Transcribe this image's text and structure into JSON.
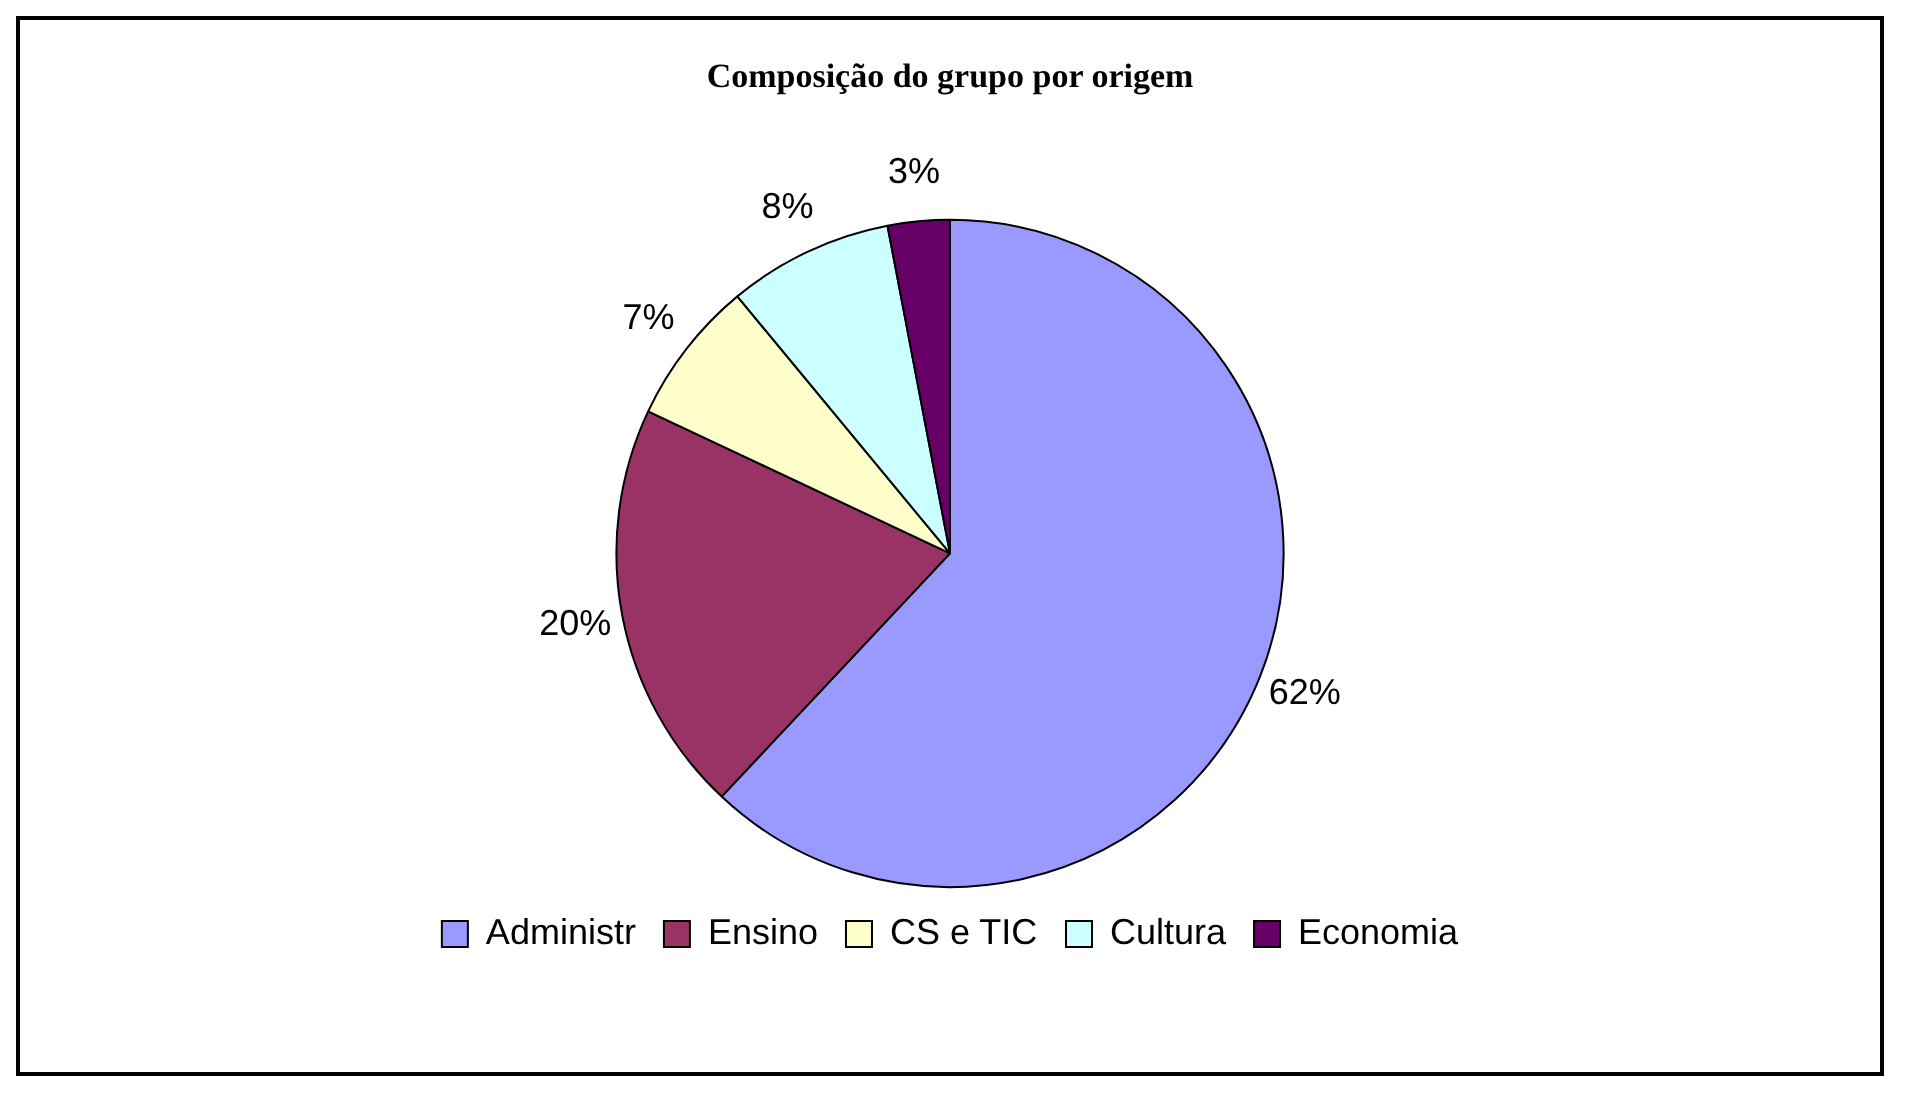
{
  "chart_data": {
    "type": "pie",
    "title": "Composição do grupo por origem",
    "categories": [
      "Administr",
      "Ensino",
      "CS e TIC",
      "Cultura",
      "Economia"
    ],
    "values": [
      62,
      20,
      7,
      8,
      3
    ],
    "colors": [
      "#9999ff",
      "#993366",
      "#ffffcc",
      "#ccffff",
      "#660066"
    ],
    "value_labels": [
      "62%",
      "20%",
      "7%",
      "8%",
      "3%"
    ],
    "legend": "bottom"
  }
}
